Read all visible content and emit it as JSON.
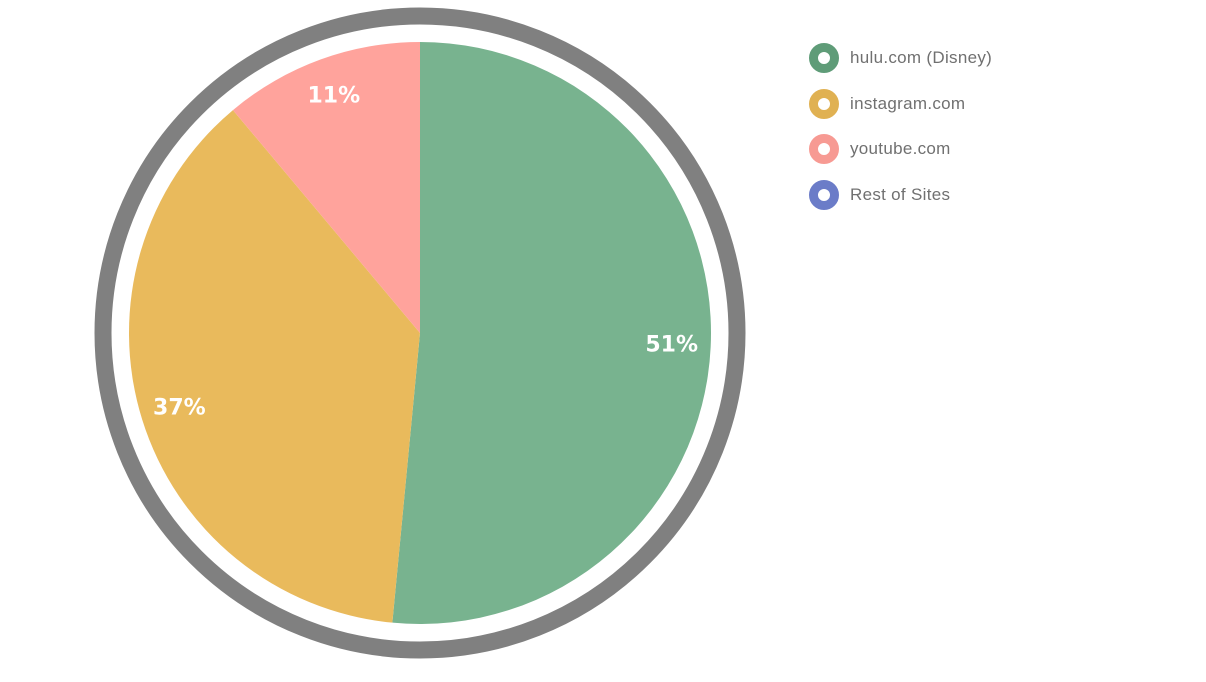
{
  "chart_data": {
    "type": "pie",
    "title": "",
    "categories": [
      "hulu.com (Disney)",
      "instagram.com",
      "youtube.com",
      "Rest of Sites"
    ],
    "values": [
      51,
      37,
      11,
      0
    ],
    "value_labels": [
      "51%",
      "37%",
      "11%",
      ""
    ],
    "unit": "%",
    "legend": "right",
    "start_angle_deg": 0,
    "direction": "clockwise",
    "colors": [
      "#78b38f",
      "#e9ba5c",
      "#ffa39c",
      "#6b7cc8"
    ],
    "legend_marker_colors": [
      "#5f9c78",
      "#e0b152",
      "#f79a93",
      "#6b7cc8"
    ],
    "ring_color": "#808080"
  }
}
